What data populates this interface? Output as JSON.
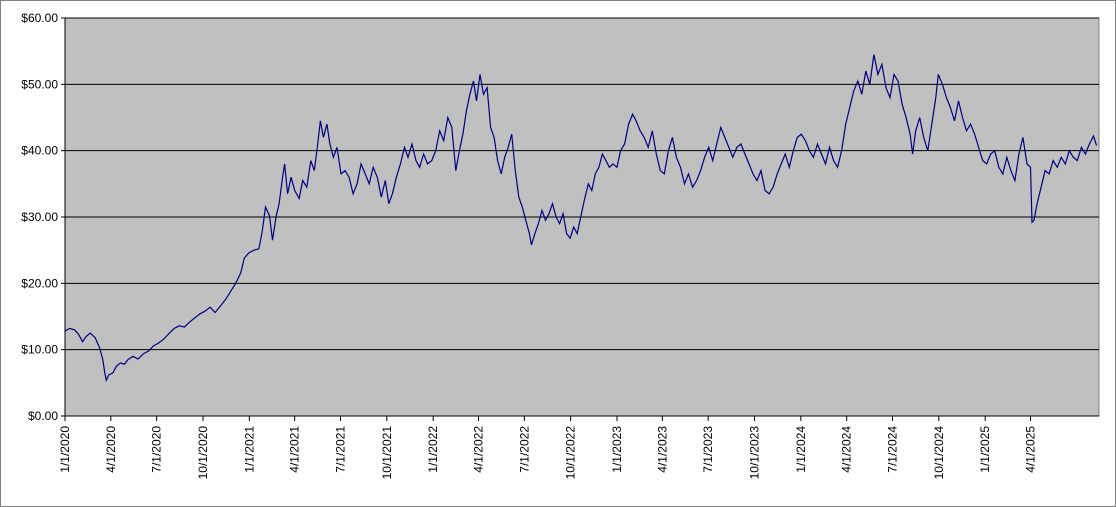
{
  "chart_data": {
    "type": "line",
    "title": "",
    "xlabel": "",
    "ylabel": "",
    "ylim": [
      0,
      60
    ],
    "y_ticks": [
      0,
      10,
      20,
      30,
      40,
      50,
      60
    ],
    "y_tick_labels": [
      "$0.00",
      "$10.00",
      "$20.00",
      "$30.00",
      "$40.00",
      "$50.00",
      "$60.00"
    ],
    "x_range": [
      "2020-01-01",
      "2025-08-15"
    ],
    "x_ticks": [
      "2020-01-01",
      "2020-04-01",
      "2020-07-01",
      "2020-10-01",
      "2021-01-01",
      "2021-04-01",
      "2021-07-01",
      "2021-10-01",
      "2022-01-01",
      "2022-04-01",
      "2022-07-01",
      "2022-10-01",
      "2023-01-01",
      "2023-04-01",
      "2023-07-01",
      "2023-10-01",
      "2024-01-01",
      "2024-04-01",
      "2024-07-01",
      "2024-10-01",
      "2025-01-01",
      "2025-04-01"
    ],
    "x_tick_labels": [
      "1/1/2020",
      "4/1/2020",
      "7/1/2020",
      "10/1/2020",
      "1/1/2021",
      "4/1/2021",
      "7/1/2021",
      "10/1/2021",
      "1/1/2022",
      "4/1/2022",
      "7/1/2022",
      "10/1/2022",
      "1/1/2023",
      "4/1/2023",
      "7/1/2023",
      "10/1/2023",
      "1/1/2024",
      "4/1/2024",
      "7/1/2024",
      "10/1/2024",
      "1/1/2025",
      "4/1/2025"
    ],
    "grid": "horizontal",
    "legend": "none",
    "colors": {
      "plot_background": "#c0c0c0",
      "line": "#000080",
      "grid": "#000000"
    },
    "series": [
      {
        "points": [
          [
            "2020-01-01",
            12.8
          ],
          [
            "2020-01-10",
            13.2
          ],
          [
            "2020-01-20",
            13.0
          ],
          [
            "2020-01-28",
            12.3
          ],
          [
            "2020-02-05",
            11.2
          ],
          [
            "2020-02-12",
            12.0
          ],
          [
            "2020-02-20",
            12.5
          ],
          [
            "2020-03-01",
            11.8
          ],
          [
            "2020-03-10",
            10.2
          ],
          [
            "2020-03-16",
            8.5
          ],
          [
            "2020-03-20",
            6.5
          ],
          [
            "2020-03-23",
            5.4
          ],
          [
            "2020-03-28",
            6.2
          ],
          [
            "2020-04-05",
            6.5
          ],
          [
            "2020-04-12",
            7.5
          ],
          [
            "2020-04-20",
            8.0
          ],
          [
            "2020-04-28",
            7.8
          ],
          [
            "2020-05-05",
            8.5
          ],
          [
            "2020-05-15",
            9.0
          ],
          [
            "2020-05-25",
            8.6
          ],
          [
            "2020-06-05",
            9.4
          ],
          [
            "2020-06-15",
            9.8
          ],
          [
            "2020-06-25",
            10.6
          ],
          [
            "2020-07-05",
            11.0
          ],
          [
            "2020-07-15",
            11.6
          ],
          [
            "2020-07-25",
            12.4
          ],
          [
            "2020-08-05",
            13.2
          ],
          [
            "2020-08-15",
            13.6
          ],
          [
            "2020-08-25",
            13.4
          ],
          [
            "2020-09-05",
            14.2
          ],
          [
            "2020-09-15",
            14.8
          ],
          [
            "2020-09-25",
            15.4
          ],
          [
            "2020-10-05",
            15.8
          ],
          [
            "2020-10-15",
            16.4
          ],
          [
            "2020-10-25",
            15.6
          ],
          [
            "2020-11-05",
            16.6
          ],
          [
            "2020-11-15",
            17.6
          ],
          [
            "2020-11-25",
            18.8
          ],
          [
            "2020-12-05",
            20.0
          ],
          [
            "2020-12-15",
            21.6
          ],
          [
            "2020-12-22",
            23.8
          ],
          [
            "2020-12-31",
            24.6
          ],
          [
            "2021-01-10",
            25.0
          ],
          [
            "2021-01-20",
            25.2
          ],
          [
            "2021-01-27",
            28.0
          ],
          [
            "2021-02-02",
            31.5
          ],
          [
            "2021-02-10",
            30.2
          ],
          [
            "2021-02-16",
            26.5
          ],
          [
            "2021-02-23",
            30.0
          ],
          [
            "2021-03-01",
            32.0
          ],
          [
            "2021-03-08",
            36.0
          ],
          [
            "2021-03-12",
            38.0
          ],
          [
            "2021-03-18",
            33.5
          ],
          [
            "2021-03-25",
            36.0
          ],
          [
            "2021-04-01",
            34.0
          ],
          [
            "2021-04-10",
            32.8
          ],
          [
            "2021-04-17",
            35.5
          ],
          [
            "2021-04-25",
            34.5
          ],
          [
            "2021-05-03",
            38.5
          ],
          [
            "2021-05-10",
            37.0
          ],
          [
            "2021-05-16",
            40.5
          ],
          [
            "2021-05-22",
            44.5
          ],
          [
            "2021-05-28",
            42.0
          ],
          [
            "2021-06-04",
            44.0
          ],
          [
            "2021-06-10",
            41.0
          ],
          [
            "2021-06-17",
            39.0
          ],
          [
            "2021-06-24",
            40.5
          ],
          [
            "2021-07-02",
            36.5
          ],
          [
            "2021-07-10",
            37.0
          ],
          [
            "2021-07-18",
            36.0
          ],
          [
            "2021-07-26",
            33.5
          ],
          [
            "2021-08-03",
            35.0
          ],
          [
            "2021-08-11",
            38.0
          ],
          [
            "2021-08-19",
            36.5
          ],
          [
            "2021-08-27",
            35.0
          ],
          [
            "2021-09-04",
            37.5
          ],
          [
            "2021-09-12",
            36.0
          ],
          [
            "2021-09-20",
            33.0
          ],
          [
            "2021-09-28",
            35.5
          ],
          [
            "2021-10-05",
            32.0
          ],
          [
            "2021-10-12",
            33.5
          ],
          [
            "2021-10-20",
            36.0
          ],
          [
            "2021-10-28",
            38.0
          ],
          [
            "2021-11-05",
            40.5
          ],
          [
            "2021-11-12",
            39.0
          ],
          [
            "2021-11-20",
            41.0
          ],
          [
            "2021-11-28",
            38.5
          ],
          [
            "2021-12-05",
            37.5
          ],
          [
            "2021-12-13",
            39.5
          ],
          [
            "2021-12-21",
            38.0
          ],
          [
            "2021-12-29",
            38.5
          ],
          [
            "2022-01-06",
            40.0
          ],
          [
            "2022-01-14",
            43.0
          ],
          [
            "2022-01-22",
            41.5
          ],
          [
            "2022-01-30",
            45.0
          ],
          [
            "2022-02-07",
            43.5
          ],
          [
            "2022-02-15",
            37.0
          ],
          [
            "2022-02-22",
            40.0
          ],
          [
            "2022-03-01",
            42.5
          ],
          [
            "2022-03-08",
            46.0
          ],
          [
            "2022-03-15",
            48.5
          ],
          [
            "2022-03-22",
            50.5
          ],
          [
            "2022-03-28",
            47.5
          ],
          [
            "2022-04-04",
            51.5
          ],
          [
            "2022-04-11",
            48.5
          ],
          [
            "2022-04-18",
            49.5
          ],
          [
            "2022-04-25",
            43.5
          ],
          [
            "2022-05-02",
            42.0
          ],
          [
            "2022-05-09",
            38.5
          ],
          [
            "2022-05-16",
            36.5
          ],
          [
            "2022-05-23",
            39.0
          ],
          [
            "2022-05-30",
            40.5
          ],
          [
            "2022-06-06",
            42.5
          ],
          [
            "2022-06-13",
            37.0
          ],
          [
            "2022-06-20",
            33.0
          ],
          [
            "2022-06-27",
            31.5
          ],
          [
            "2022-07-04",
            29.5
          ],
          [
            "2022-07-11",
            27.5
          ],
          [
            "2022-07-15",
            25.8
          ],
          [
            "2022-07-22",
            27.5
          ],
          [
            "2022-07-29",
            29.0
          ],
          [
            "2022-08-05",
            31.0
          ],
          [
            "2022-08-12",
            29.5
          ],
          [
            "2022-08-19",
            30.5
          ],
          [
            "2022-08-26",
            32.0
          ],
          [
            "2022-09-02",
            30.0
          ],
          [
            "2022-09-09",
            29.0
          ],
          [
            "2022-09-16",
            30.5
          ],
          [
            "2022-09-23",
            27.5
          ],
          [
            "2022-09-30",
            26.8
          ],
          [
            "2022-10-07",
            28.5
          ],
          [
            "2022-10-14",
            27.5
          ],
          [
            "2022-10-21",
            30.0
          ],
          [
            "2022-10-28",
            32.5
          ],
          [
            "2022-11-05",
            35.0
          ],
          [
            "2022-11-12",
            34.0
          ],
          [
            "2022-11-19",
            36.5
          ],
          [
            "2022-11-26",
            37.5
          ],
          [
            "2022-12-03",
            39.5
          ],
          [
            "2022-12-10",
            38.5
          ],
          [
            "2022-12-17",
            37.5
          ],
          [
            "2022-12-24",
            38.0
          ],
          [
            "2023-01-01",
            37.5
          ],
          [
            "2023-01-08",
            40.0
          ],
          [
            "2023-01-16",
            41.0
          ],
          [
            "2023-01-24",
            44.0
          ],
          [
            "2023-02-01",
            45.5
          ],
          [
            "2023-02-08",
            44.5
          ],
          [
            "2023-02-16",
            43.0
          ],
          [
            "2023-02-24",
            42.0
          ],
          [
            "2023-03-04",
            40.5
          ],
          [
            "2023-03-12",
            43.0
          ],
          [
            "2023-03-20",
            39.5
          ],
          [
            "2023-03-28",
            37.0
          ],
          [
            "2023-04-05",
            36.5
          ],
          [
            "2023-04-13",
            40.0
          ],
          [
            "2023-04-21",
            42.0
          ],
          [
            "2023-04-29",
            39.0
          ],
          [
            "2023-05-07",
            37.5
          ],
          [
            "2023-05-15",
            35.0
          ],
          [
            "2023-05-23",
            36.5
          ],
          [
            "2023-05-31",
            34.5
          ],
          [
            "2023-06-08",
            35.5
          ],
          [
            "2023-06-16",
            37.0
          ],
          [
            "2023-06-24",
            39.0
          ],
          [
            "2023-07-02",
            40.5
          ],
          [
            "2023-07-10",
            38.5
          ],
          [
            "2023-07-18",
            41.0
          ],
          [
            "2023-07-26",
            43.5
          ],
          [
            "2023-08-03",
            42.0
          ],
          [
            "2023-08-11",
            40.5
          ],
          [
            "2023-08-19",
            39.0
          ],
          [
            "2023-08-27",
            40.5
          ],
          [
            "2023-09-04",
            41.0
          ],
          [
            "2023-09-12",
            39.5
          ],
          [
            "2023-09-20",
            38.0
          ],
          [
            "2023-09-28",
            36.5
          ],
          [
            "2023-10-06",
            35.5
          ],
          [
            "2023-10-14",
            37.0
          ],
          [
            "2023-10-22",
            34.0
          ],
          [
            "2023-10-30",
            33.5
          ],
          [
            "2023-11-07",
            34.5
          ],
          [
            "2023-11-15",
            36.5
          ],
          [
            "2023-11-23",
            38.0
          ],
          [
            "2023-12-01",
            39.5
          ],
          [
            "2023-12-09",
            37.5
          ],
          [
            "2023-12-17",
            40.0
          ],
          [
            "2023-12-25",
            42.0
          ],
          [
            "2024-01-02",
            42.5
          ],
          [
            "2024-01-10",
            41.5
          ],
          [
            "2024-01-18",
            40.0
          ],
          [
            "2024-01-26",
            39.0
          ],
          [
            "2024-02-03",
            41.0
          ],
          [
            "2024-02-11",
            39.5
          ],
          [
            "2024-02-19",
            38.0
          ],
          [
            "2024-02-27",
            40.5
          ],
          [
            "2024-03-06",
            38.5
          ],
          [
            "2024-03-14",
            37.5
          ],
          [
            "2024-03-22",
            40.0
          ],
          [
            "2024-03-30",
            44.0
          ],
          [
            "2024-04-07",
            46.5
          ],
          [
            "2024-04-15",
            49.0
          ],
          [
            "2024-04-23",
            50.5
          ],
          [
            "2024-05-01",
            48.5
          ],
          [
            "2024-05-09",
            52.0
          ],
          [
            "2024-05-17",
            50.0
          ],
          [
            "2024-05-25",
            54.5
          ],
          [
            "2024-06-02",
            51.5
          ],
          [
            "2024-06-10",
            53.0
          ],
          [
            "2024-06-18",
            49.5
          ],
          [
            "2024-06-26",
            48.0
          ],
          [
            "2024-07-04",
            51.5
          ],
          [
            "2024-07-12",
            50.5
          ],
          [
            "2024-07-20",
            47.0
          ],
          [
            "2024-07-28",
            45.0
          ],
          [
            "2024-08-05",
            42.5
          ],
          [
            "2024-08-10",
            39.5
          ],
          [
            "2024-08-16",
            43.0
          ],
          [
            "2024-08-24",
            45.0
          ],
          [
            "2024-09-01",
            42.0
          ],
          [
            "2024-09-09",
            40.0
          ],
          [
            "2024-09-17",
            44.0
          ],
          [
            "2024-09-25",
            48.0
          ],
          [
            "2024-09-30",
            51.5
          ],
          [
            "2024-10-08",
            50.0
          ],
          [
            "2024-10-16",
            48.0
          ],
          [
            "2024-10-24",
            46.5
          ],
          [
            "2024-11-01",
            44.5
          ],
          [
            "2024-11-09",
            47.5
          ],
          [
            "2024-11-17",
            45.0
          ],
          [
            "2024-11-25",
            43.0
          ],
          [
            "2024-12-03",
            44.0
          ],
          [
            "2024-12-11",
            42.5
          ],
          [
            "2024-12-19",
            40.5
          ],
          [
            "2024-12-27",
            38.5
          ],
          [
            "2025-01-04",
            38.0
          ],
          [
            "2025-01-12",
            39.5
          ],
          [
            "2025-01-20",
            40.0
          ],
          [
            "2025-01-28",
            37.5
          ],
          [
            "2025-02-05",
            36.5
          ],
          [
            "2025-02-13",
            39.0
          ],
          [
            "2025-02-21",
            37.0
          ],
          [
            "2025-03-01",
            35.5
          ],
          [
            "2025-03-09",
            39.5
          ],
          [
            "2025-03-17",
            42.0
          ],
          [
            "2025-03-25",
            38.0
          ],
          [
            "2025-04-01",
            37.5
          ],
          [
            "2025-04-04",
            29.2
          ],
          [
            "2025-04-08",
            29.5
          ],
          [
            "2025-04-14",
            32.0
          ],
          [
            "2025-04-22",
            34.5
          ],
          [
            "2025-04-30",
            37.0
          ],
          [
            "2025-05-08",
            36.5
          ],
          [
            "2025-05-16",
            38.5
          ],
          [
            "2025-05-24",
            37.5
          ],
          [
            "2025-06-01",
            39.0
          ],
          [
            "2025-06-09",
            38.0
          ],
          [
            "2025-06-17",
            40.0
          ],
          [
            "2025-06-25",
            39.0
          ],
          [
            "2025-07-03",
            38.5
          ],
          [
            "2025-07-11",
            40.5
          ],
          [
            "2025-07-19",
            39.5
          ],
          [
            "2025-07-27",
            41.0
          ],
          [
            "2025-08-04",
            42.2
          ],
          [
            "2025-08-10",
            40.8
          ]
        ]
      }
    ]
  }
}
